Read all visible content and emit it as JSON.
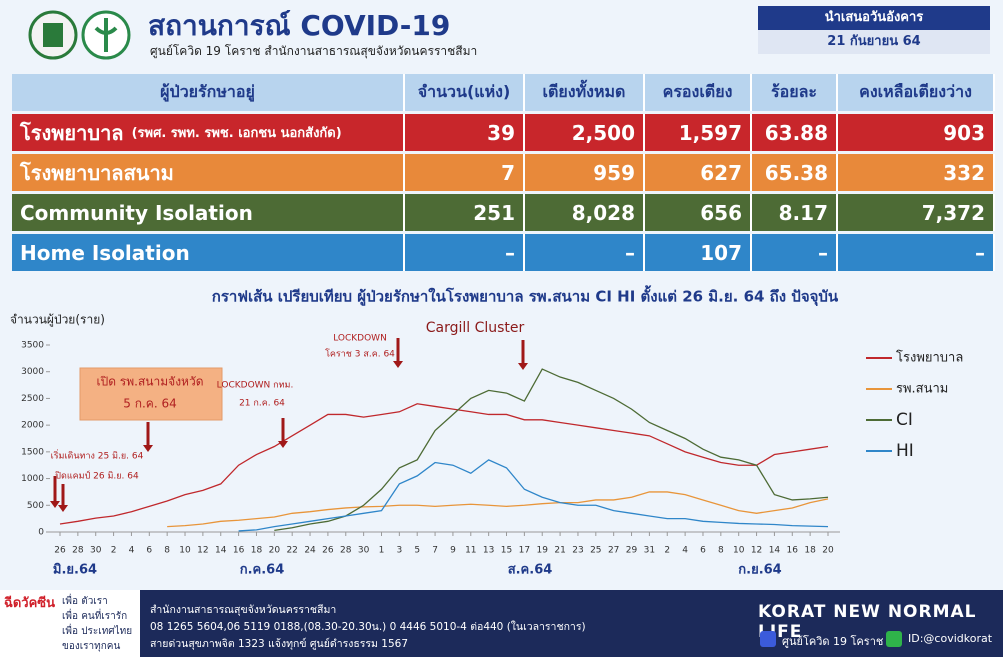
{
  "header": {
    "title": "สถานการณ์ COVID-19",
    "subtitle": "ศูนย์โควิด 19 โคราช สำนักงานสาธารณสุขจังหวัดนครราชสีมา",
    "date_label": "นำเสนอวันอังคาร",
    "date": "21 กันยายน 64"
  },
  "table": {
    "header": [
      "ผู้ป่วยรักษาอยู่",
      "จำนวน(แห่ง)",
      "เตียงทั้งหมด",
      "ครองเตียง",
      "ร้อยละ",
      "คงเหลือเตียงว่าง"
    ],
    "rows": [
      {
        "name": "โรงพยาบาล",
        "note": "(รพศ. รพท. รพช. เอกชน นอกสังกัด)",
        "cells": [
          "39",
          "2,500",
          "1,597",
          "63.88",
          "903"
        ]
      },
      {
        "name": "โรงพยาบาลสนาม",
        "cells": [
          "7",
          "959",
          "627",
          "65.38",
          "332"
        ]
      },
      {
        "name": "Community Isolation",
        "cells": [
          "251",
          "8,028",
          "656",
          "8.17",
          "7,372"
        ]
      },
      {
        "name": "Home Isolation",
        "cells": [
          "–",
          "–",
          "107",
          "–",
          "–"
        ]
      }
    ]
  },
  "chart_data": {
    "type": "line",
    "title": "กราฟเส้น เปรียบเทียบ ผู้ป่วยรักษาในโรงพยาบาล รพ.สนาม CI HI ตั้งแต่ 26 มิ.ย. 64 ถึง ปัจจุบัน",
    "y_label": "จำนวนผู้ป่วย(ราย)",
    "categories": [
      "26",
      "28",
      "30",
      "2",
      "4",
      "6",
      "8",
      "10",
      "12",
      "14",
      "16",
      "18",
      "20",
      "22",
      "24",
      "26",
      "28",
      "30",
      "1",
      "3",
      "5",
      "7",
      "9",
      "11",
      "13",
      "15",
      "17",
      "19",
      "21",
      "23",
      "25",
      "27",
      "29",
      "31",
      "2",
      "4",
      "6",
      "8",
      "10",
      "12",
      "14",
      "16",
      "18",
      "20"
    ],
    "month_labels": [
      "มิ.ย.64",
      "ก.ค.64",
      "ส.ค.64",
      "ก.ย.64"
    ],
    "ylim": [
      0,
      3500
    ],
    "yticks": [
      0,
      500,
      1000,
      1500,
      2000,
      2500,
      3000,
      3500
    ],
    "grid": false,
    "legend": "right",
    "series": [
      {
        "name": "โรงพยาบาล",
        "color": "#c0282c",
        "values": [
          150,
          200,
          260,
          300,
          380,
          480,
          580,
          700,
          780,
          900,
          1250,
          1450,
          1600,
          1800,
          2000,
          2200,
          2200,
          2150,
          2200,
          2250,
          2400,
          2350,
          2300,
          2250,
          2200,
          2200,
          2100,
          2100,
          2050,
          2000,
          1950,
          1900,
          1850,
          1800,
          1650,
          1500,
          1400,
          1300,
          1250,
          1250,
          1450,
          1500,
          1550,
          1600
        ]
      },
      {
        "name": "รพ.สนาม",
        "color": "#e8953a",
        "values": [
          null,
          null,
          null,
          null,
          null,
          null,
          100,
          120,
          150,
          200,
          220,
          250,
          280,
          350,
          380,
          420,
          450,
          470,
          480,
          500,
          500,
          480,
          500,
          520,
          500,
          480,
          500,
          530,
          550,
          550,
          600,
          600,
          650,
          750,
          750,
          700,
          600,
          500,
          400,
          350,
          400,
          450,
          550,
          620
        ]
      },
      {
        "name": "CI",
        "color": "#4d6b35",
        "values": [
          null,
          null,
          null,
          null,
          null,
          null,
          null,
          null,
          null,
          null,
          null,
          null,
          30,
          80,
          150,
          200,
          300,
          500,
          800,
          1200,
          1350,
          1900,
          2200,
          2500,
          2650,
          2600,
          2450,
          3050,
          2900,
          2800,
          2650,
          2500,
          2300,
          2050,
          1900,
          1750,
          1550,
          1400,
          1350,
          1250,
          700,
          600,
          620,
          650
        ]
      },
      {
        "name": "HI",
        "color": "#2f86c9",
        "values": [
          null,
          null,
          null,
          null,
          null,
          null,
          null,
          null,
          null,
          null,
          20,
          40,
          100,
          150,
          200,
          250,
          300,
          350,
          400,
          900,
          1050,
          1300,
          1250,
          1100,
          1350,
          1200,
          800,
          650,
          550,
          500,
          500,
          400,
          350,
          300,
          250,
          250,
          200,
          180,
          160,
          150,
          140,
          120,
          110,
          100
        ]
      }
    ],
    "annotations": [
      "LOCKDOWN",
      "โคราช 3 ส.ค. 64",
      "Cargill  Cluster",
      "เปิด รพ.สนามจังหวัด",
      "5 ก.ค. 64",
      "LOCKDOWN กทม.",
      "21 ก.ค. 64",
      "เริ่มเดินทาง 25 มิ.ย. 64",
      "ปิดแคมป์ 26 มิ.ย. 64"
    ]
  },
  "footer": {
    "slogan": [
      "ฉีดวัคซีน",
      "เพื่อ ตัวเรา",
      "เพื่อ คนที่เรารัก",
      "เพื่อ ประเทศไทย",
      "ของเราทุกคน"
    ],
    "contact": [
      "สำนักงานสาธารณสุขจังหวัดนครราชสีมา",
      "08 1265 5604,06 5119 0188,(08.30-20.30น.) 0 4446 5010-4 ต่อ440 (ในเวลาราชการ)",
      "สายด่วนสุขภาพจิต 1323 แจ้งทุกข์ ศูนย์ดำรงธรรม 1567"
    ],
    "brand": "KORAT NEW NORMAL LIFE",
    "facebook": "ศูนย์โควิด 19 โคราช",
    "line": "ID:@covidkorat"
  }
}
